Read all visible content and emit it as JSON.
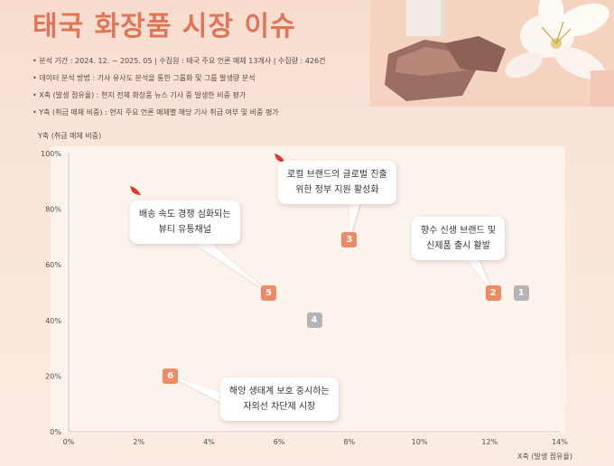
{
  "page": {
    "title": "태국 화장품 시장 이슈",
    "meta_lines": [
      "• 분석 기간 : 2024. 12. ~ 2025. 05   |   수집원 : 태국 주요 언론 매체 13개사   |   수집량 : 426건",
      "• 데이터 분석 방법 : 기사 유사도 분석을 통한 그룹화 및 그룹 발생량 분석",
      "• X축 (발생 점유율) : 현지 전체 화장품 뉴스 기사 중 발생한 비중 평가",
      "• Y축 (취급 매체 비중) : 현지 주요 언론 매체별 해당 기사 취급 여부 및 비중 평가"
    ]
  },
  "chart_data": {
    "type": "scatter",
    "xlabel": "X축 (발생 점유율)",
    "ylabel": "Y축 (취급 매체 비중)",
    "xlim": [
      0,
      14
    ],
    "ylim": [
      0,
      100
    ],
    "x_ticks": [
      "0%",
      "2%",
      "4%",
      "6%",
      "8%",
      "10%",
      "12%",
      "14%"
    ],
    "y_ticks": [
      "0%",
      "20%",
      "40%",
      "60%",
      "80%",
      "100%"
    ],
    "grid": false,
    "colors": {
      "highlight": "#ee8a66",
      "muted": "#b4b4b4",
      "leader": "#ffffff"
    },
    "points": [
      {
        "id": "1",
        "x": 12.9,
        "y": 50,
        "style": "gray",
        "label": ""
      },
      {
        "id": "2",
        "x": 12.1,
        "y": 50,
        "style": "orange",
        "label": "향수 신생 브랜드 및\n신제품 출시 활발"
      },
      {
        "id": "3",
        "x": 8.0,
        "y": 69,
        "style": "orange",
        "label": "로컬 브랜드의 글로벌 진출\n위한 정부 지원 활성화"
      },
      {
        "id": "4",
        "x": 7.0,
        "y": 40,
        "style": "gray",
        "label": ""
      },
      {
        "id": "5",
        "x": 5.7,
        "y": 50,
        "style": "orange",
        "label": "배송 속도 경쟁 심화되는\n뷰티 유통채널"
      },
      {
        "id": "6",
        "x": 2.9,
        "y": 20,
        "style": "orange",
        "label": "해양 생태계 보호 중시하는\n자외선 차단제 시장"
      }
    ]
  }
}
